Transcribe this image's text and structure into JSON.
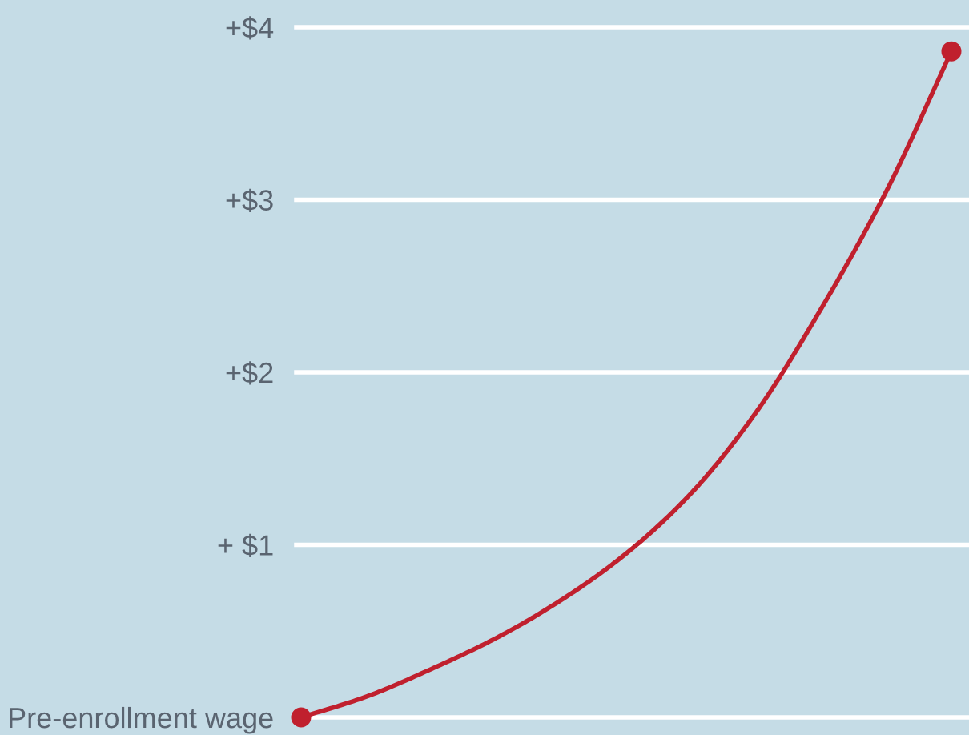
{
  "chart_data": {
    "type": "line",
    "categories": [
      null,
      null,
      null,
      null,
      null,
      null,
      null,
      null,
      null,
      null,
      null
    ],
    "series": [
      {
        "color": "#c0202e",
        "values": [
          0,
          0.12,
          0.28,
          0.46,
          0.68,
          0.95,
          1.3,
          1.77,
          2.37,
          3.05,
          3.86
        ]
      },
      {
        "type": "scatter",
        "marker": "circle",
        "color": "#c0202e",
        "values": [
          0,
          null,
          null,
          null,
          null,
          null,
          null,
          null,
          null,
          null,
          3.86
        ]
      }
    ],
    "ylim": [
      0,
      4
    ],
    "yticks": [
      {
        "value": 0,
        "label": "Pre-enrollment wage"
      },
      {
        "value": 1,
        "label": "+ $1"
      },
      {
        "value": 2,
        "label": "+$2"
      },
      {
        "value": 3,
        "label": "+$3"
      },
      {
        "value": 4,
        "label": "+$4"
      }
    ],
    "grid": "y",
    "tick_labels": "y",
    "line_style": "solid",
    "legend": false
  }
}
